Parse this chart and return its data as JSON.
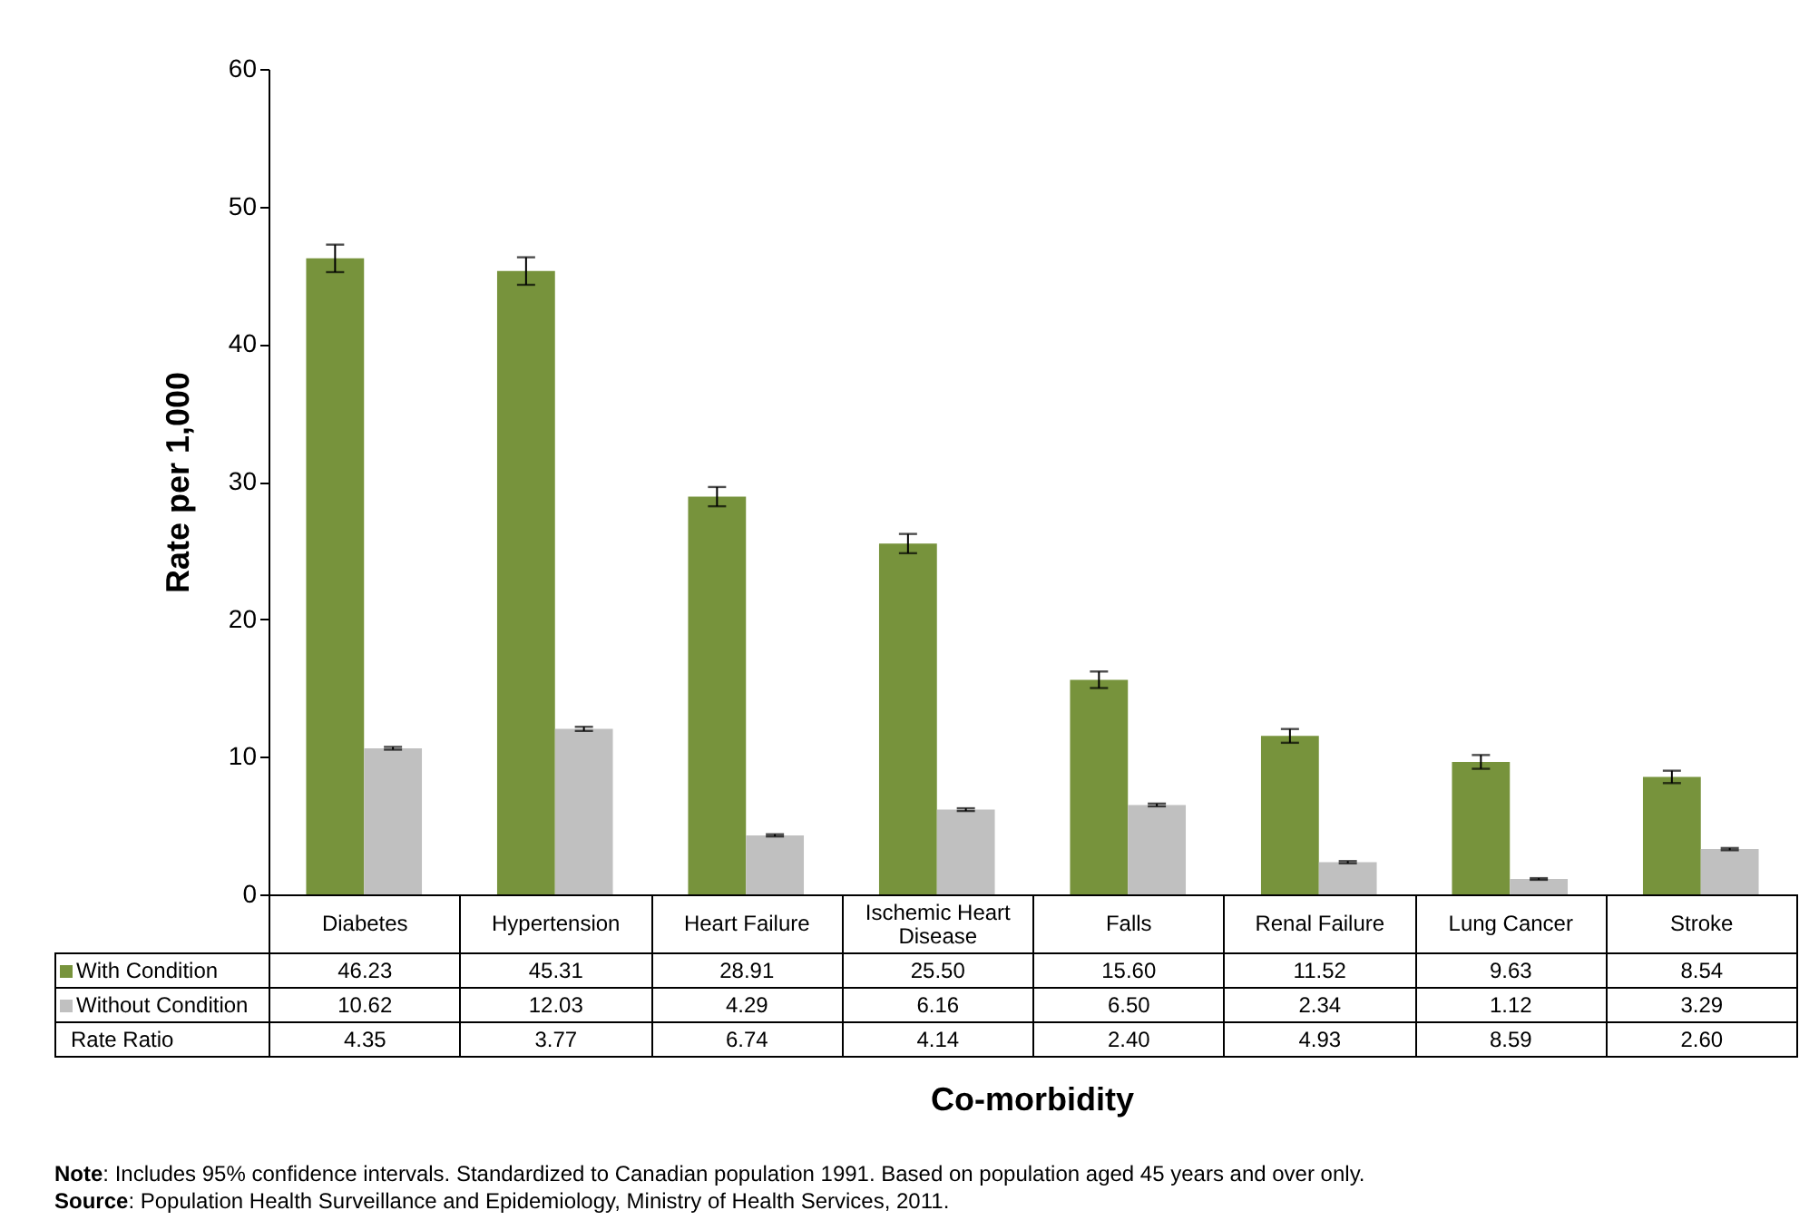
{
  "chart_data": {
    "type": "bar",
    "ylabel": "Rate per 1,000",
    "xlabel": "Co-morbidity",
    "categories": [
      "Diabetes",
      "Hypertension",
      "Heart Failure",
      "Ischemic Heart Disease",
      "Falls",
      "Renal Failure",
      "Lung Cancer",
      "Stroke"
    ],
    "series": [
      {
        "name": "With Condition",
        "color": "#77933c",
        "values": [
          46.23,
          45.31,
          28.91,
          25.5,
          15.6,
          11.52,
          9.63,
          8.54
        ],
        "value_labels": [
          "46.23",
          "45.31",
          "28.91",
          "25.50",
          "15.60",
          "11.52",
          "9.63",
          "8.54"
        ],
        "errors": [
          1.0,
          1.0,
          0.7,
          0.7,
          0.6,
          0.5,
          0.5,
          0.45
        ]
      },
      {
        "name": "Without Condition",
        "color": "#c0c0c0",
        "values": [
          10.62,
          12.03,
          4.29,
          6.16,
          6.5,
          2.34,
          1.12,
          3.29
        ],
        "value_labels": [
          "10.62",
          "12.03",
          "4.29",
          "6.16",
          "6.50",
          "2.34",
          "1.12",
          "3.29"
        ],
        "errors": [
          0.1,
          0.15,
          0.08,
          0.1,
          0.1,
          0.08,
          0.06,
          0.08
        ]
      }
    ],
    "ylim": [
      0,
      60
    ],
    "yticks": [
      0,
      10,
      20,
      30,
      40,
      50,
      60
    ],
    "grid": false,
    "legend": "bottom left",
    "annotations": [
      "Rate Ratio",
      "4.35",
      "3.77",
      "6.74",
      "4.14",
      "2.40",
      "4.93",
      "8.59",
      "2.60",
      "Note: Includes 95% confidence intervals. Standardized to Canadian population 1991. Based on population aged 45 years and over only.",
      "Source: Population Health Surveillance and Epidemiology, Ministry of Health Services, 2011."
    ]
  }
}
